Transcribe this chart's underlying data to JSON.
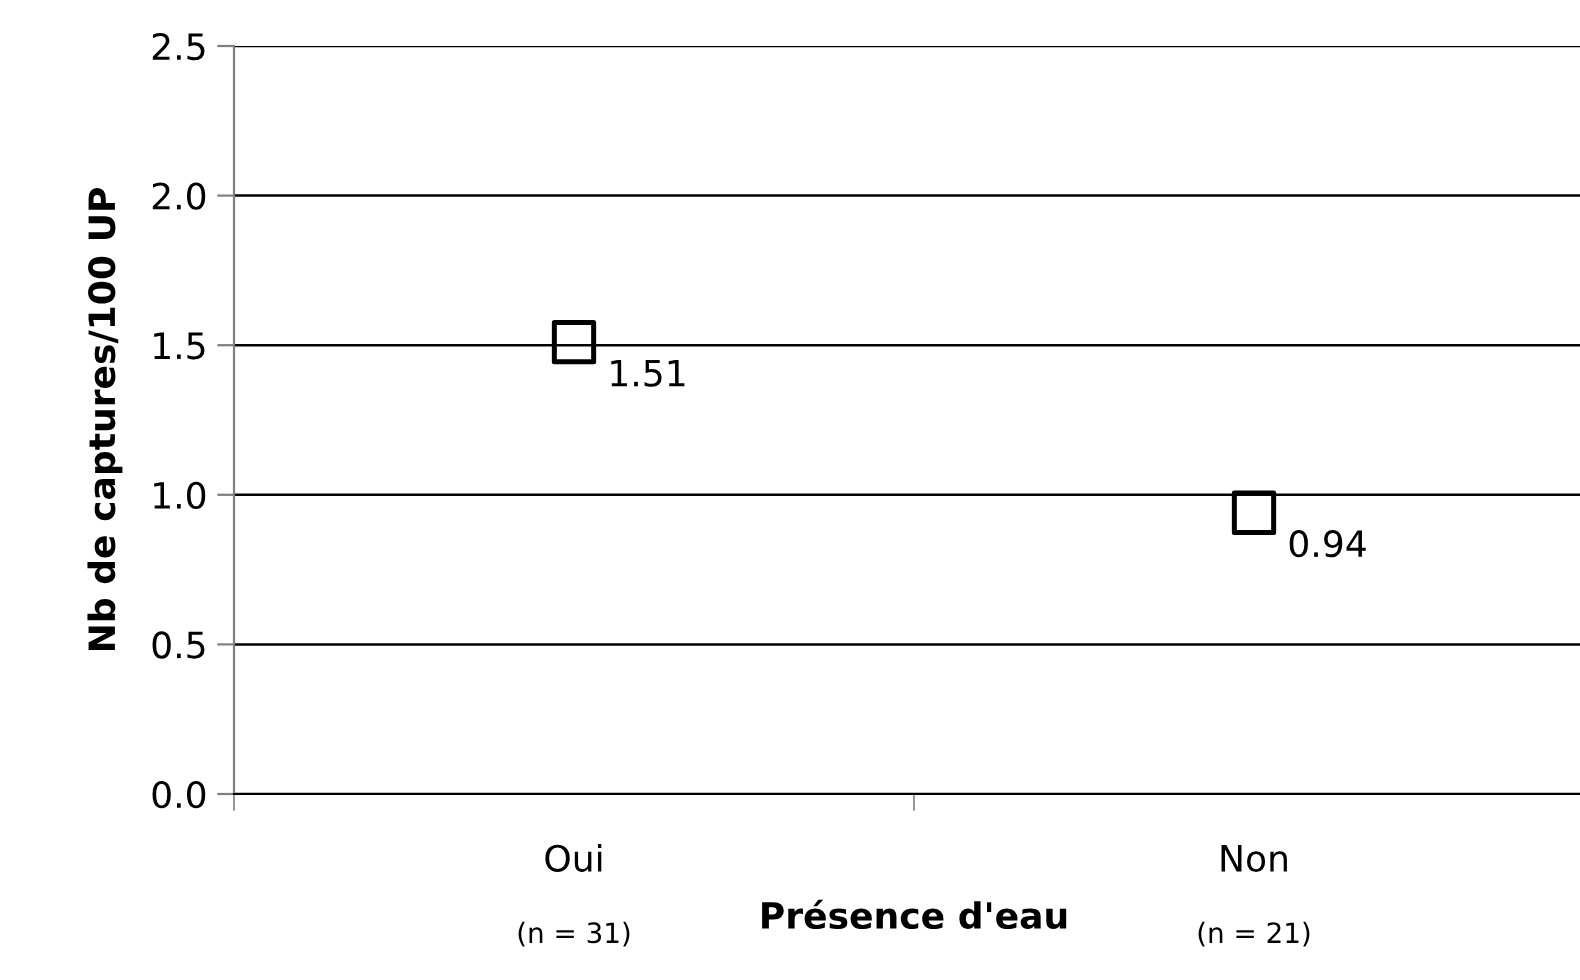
{
  "chart_data": {
    "type": "scatter",
    "xlabel": "Présence d'eau",
    "ylabel": "Nb de captures/100 UP",
    "categories": [
      "Oui",
      "Non"
    ],
    "series": [
      {
        "color": "#000000",
        "values": [
          1.51,
          0.94
        ]
      }
    ],
    "ylim": [
      0,
      2.5
    ],
    "yticks": [
      {
        "value": 0,
        "label": "0.0"
      },
      {
        "value": 0.5,
        "label": "0.5"
      },
      {
        "value": 1,
        "label": "1.0"
      },
      {
        "value": 1.5,
        "label": "1.5"
      },
      {
        "value": 2,
        "label": "2.0"
      },
      {
        "value": 2.5,
        "label": "2.5"
      }
    ],
    "grid": "y",
    "marker": "square",
    "data_labels": true,
    "legend": false,
    "annotations": [
      "(n = 31)",
      "(n = 21)"
    ]
  }
}
